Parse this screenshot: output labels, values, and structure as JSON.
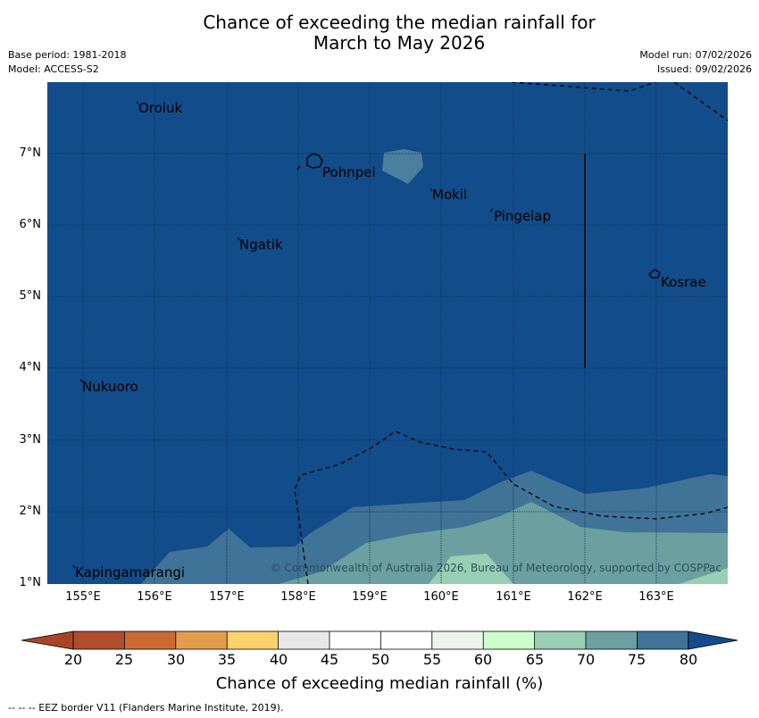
{
  "title": {
    "line1": "Chance of exceeding the median rainfall for",
    "line2": "March to May 2026"
  },
  "meta": {
    "base_period": "Base period: 1981-2018",
    "model": "Model: ACCESS-S2",
    "model_run": "Model run: 07/02/2026",
    "issued": "Issued: 09/02/2026"
  },
  "map": {
    "places": [
      "Oroluk",
      "Pohnpei",
      "Mokil",
      "Pingelap",
      "Ngatik",
      "Kosrae",
      "Nukuoro",
      "Kapingamarangi"
    ],
    "lat_labels": [
      "7°N",
      "6°N",
      "5°N",
      "4°N",
      "3°N",
      "2°N",
      "1°N"
    ],
    "lon_labels": [
      "155°E",
      "156°E",
      "157°E",
      "158°E",
      "159°E",
      "160°E",
      "161°E",
      "162°E",
      "163°E"
    ],
    "copyright": "© Commonwealth of Australia 2026, Bureau of Meteorology, supported by COSPPac"
  },
  "colorbar": {
    "ticks": [
      "20",
      "25",
      "30",
      "35",
      "40",
      "45",
      "50",
      "55",
      "60",
      "65",
      "70",
      "75",
      "80"
    ],
    "under_color": "#A84527",
    "over_color": "#134C8A",
    "colors": [
      "#B04D2C",
      "#CC6933",
      "#E39B4C",
      "#FCD16E",
      "#E8E8E8",
      "#FFFFFF",
      "#FFFFFF",
      "#EAF6EA",
      "#CCFFCC",
      "#98CFB2",
      "#6B9FA0",
      "#3F7397"
    ],
    "label": "Chance of exceeding median rainfall (%)"
  },
  "footnote": "--  --  -- EEZ border V11 (Flanders Marine Institute, 2019)."
}
